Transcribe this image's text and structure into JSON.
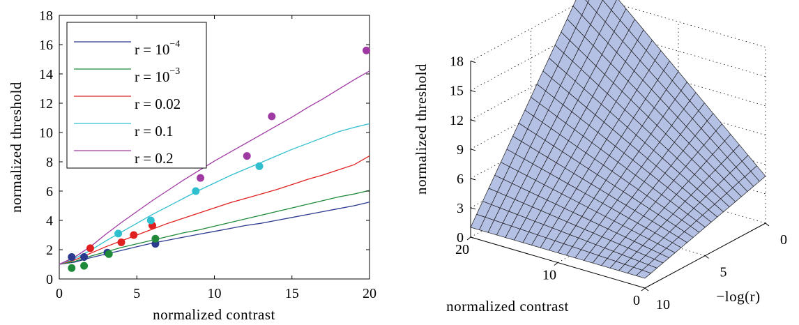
{
  "chart_data": [
    {
      "type": "line",
      "xlabel": "normalized contrast",
      "ylabel": "normalized threshold",
      "xlim": [
        0,
        20
      ],
      "ylim": [
        0,
        18
      ],
      "xticks": [
        0,
        5,
        10,
        15,
        20
      ],
      "yticks": [
        0,
        2,
        4,
        6,
        8,
        10,
        12,
        14,
        16,
        18
      ],
      "legend_position": "top-left",
      "series": [
        {
          "name": "r = 10^-4",
          "legend_base": "r = 10",
          "legend_exp": "−4",
          "color": "#2b3a8f",
          "x": [
            0,
            1,
            2,
            3,
            4,
            5,
            6,
            7,
            8,
            9,
            10,
            11,
            12,
            13,
            14,
            15,
            16,
            17,
            18,
            19,
            20
          ],
          "y": [
            1.0,
            1.15,
            1.45,
            1.7,
            1.95,
            2.2,
            2.45,
            2.65,
            2.85,
            3.05,
            3.25,
            3.45,
            3.65,
            3.8,
            4.0,
            4.2,
            4.4,
            4.6,
            4.8,
            5.0,
            5.25
          ],
          "points_x": [
            0.8,
            1.6,
            3.1,
            6.2
          ],
          "points_y": [
            1.5,
            1.5,
            1.8,
            2.4
          ]
        },
        {
          "name": "r = 10^-3",
          "legend_base": "r = 10",
          "legend_exp": "−3",
          "color": "#1f8a3a",
          "x": [
            0,
            1,
            2,
            3,
            4,
            5,
            6,
            7,
            8,
            9,
            10,
            11,
            12,
            13,
            14,
            15,
            16,
            17,
            18,
            19,
            20
          ],
          "y": [
            1.0,
            1.2,
            1.55,
            1.85,
            2.15,
            2.4,
            2.65,
            2.9,
            3.15,
            3.35,
            3.6,
            3.85,
            4.1,
            4.35,
            4.6,
            4.85,
            5.1,
            5.35,
            5.6,
            5.8,
            6.05
          ],
          "points_x": [
            0.8,
            1.6,
            3.2,
            6.2
          ],
          "points_y": [
            0.75,
            0.9,
            1.7,
            2.75
          ]
        },
        {
          "name": "r = 0.02",
          "legend_base": "r = 0.02",
          "legend_exp": "",
          "color": "#e02020",
          "x": [
            0,
            1,
            2,
            3,
            4,
            5,
            6,
            7,
            8,
            9,
            10,
            11,
            12,
            13,
            14,
            15,
            16,
            17,
            18,
            19,
            20
          ],
          "y": [
            1.0,
            1.3,
            1.75,
            2.2,
            2.6,
            3.0,
            3.4,
            3.8,
            4.15,
            4.5,
            4.85,
            5.2,
            5.5,
            5.8,
            6.1,
            6.45,
            6.8,
            7.1,
            7.45,
            7.8,
            8.4
          ],
          "points_x": [
            2.0,
            4.0,
            4.8,
            6.0
          ],
          "points_y": [
            2.1,
            2.5,
            3.0,
            3.65
          ]
        },
        {
          "name": "r = 0.1",
          "legend_base": "r = 0.1",
          "legend_exp": "",
          "color": "#2fbfcf",
          "x": [
            0,
            1,
            2,
            3,
            4,
            5,
            6,
            7,
            8,
            9,
            10,
            11,
            12,
            13,
            14,
            15,
            16,
            17,
            18,
            19,
            20
          ],
          "y": [
            1.0,
            1.4,
            1.95,
            2.6,
            3.2,
            3.8,
            4.4,
            4.95,
            5.5,
            6.05,
            6.55,
            7.05,
            7.5,
            7.95,
            8.4,
            8.85,
            9.25,
            9.65,
            10.05,
            10.35,
            10.6
          ],
          "points_x": [
            3.8,
            5.9,
            8.8,
            12.9
          ],
          "points_y": [
            3.1,
            4.0,
            6.0,
            7.7
          ]
        },
        {
          "name": "r = 0.2",
          "legend_base": "r = 0.2",
          "legend_exp": "",
          "color": "#a03aa3",
          "x": [
            0,
            1,
            2,
            3,
            4,
            5,
            6,
            7,
            8,
            9,
            10,
            11,
            12,
            13,
            14,
            15,
            16,
            17,
            18,
            19,
            20
          ],
          "y": [
            1.0,
            1.5,
            2.2,
            3.05,
            3.85,
            4.6,
            5.35,
            6.05,
            6.75,
            7.4,
            8.05,
            8.65,
            9.25,
            9.85,
            10.45,
            11.05,
            11.7,
            12.3,
            12.95,
            13.6,
            14.2
          ],
          "points_x": [
            9.1,
            12.1,
            13.7,
            19.8
          ],
          "points_y": [
            6.9,
            8.4,
            11.1,
            15.6
          ]
        }
      ]
    },
    {
      "type": "surface",
      "xlabel": "normalized contrast",
      "ylabel": "−log(r)",
      "zlabel": "normalized threshold",
      "xlim": [
        0,
        20
      ],
      "ylim": [
        0,
        10
      ],
      "zlim": [
        0,
        18
      ],
      "xticks": [
        0,
        10,
        20
      ],
      "yticks": [
        0,
        5,
        10
      ],
      "zticks": [
        0,
        3,
        6,
        9,
        12,
        15,
        18
      ],
      "face_color": "#b4c0e4",
      "edge_color": "#1a1a1a",
      "grid": true,
      "corner_values": {
        "contrast_0_logr_0": 1.0,
        "contrast_0_logr_10": 1.0,
        "contrast_20_logr_0": 21.0,
        "contrast_20_logr_10": 4.8
      }
    }
  ]
}
